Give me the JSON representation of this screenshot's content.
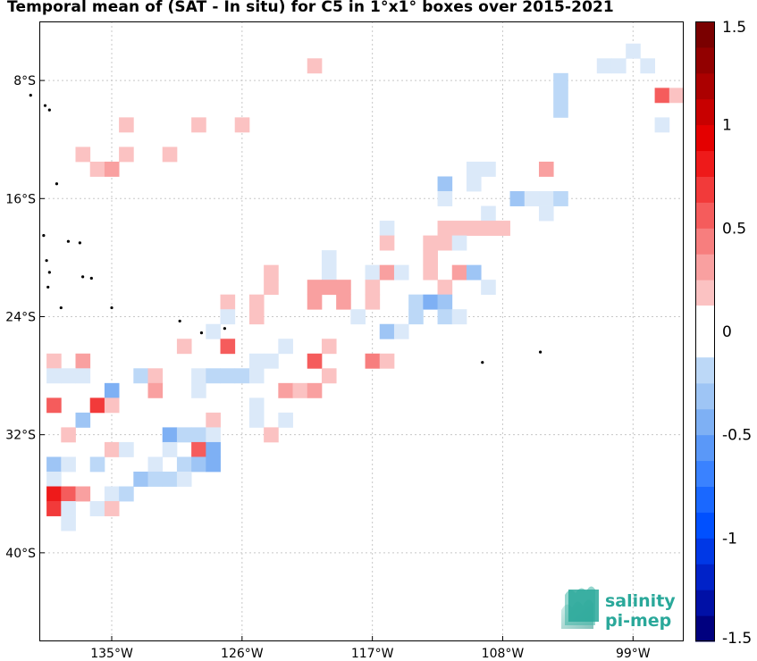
{
  "title": "Temporal mean of (SAT - In situ) for C5 in 1°x1° boxes over 2015-2021",
  "logo": {
    "line1": "salinity",
    "line2": "pi-mep",
    "color": "#2aa89a"
  },
  "chart_data": {
    "type": "heatmap",
    "title": "Temporal mean of (SAT - In situ) for C5 in 1°x1° boxes over 2015-2021",
    "x_ticks": [
      {
        "value": -135,
        "label": "135°W"
      },
      {
        "value": -126,
        "label": "126°W"
      },
      {
        "value": -117,
        "label": "117°W"
      },
      {
        "value": -108,
        "label": "108°W"
      },
      {
        "value": -99,
        "label": "99°W"
      }
    ],
    "y_ticks": [
      {
        "value": -8,
        "label": "8°S"
      },
      {
        "value": -16,
        "label": "16°S"
      },
      {
        "value": -24,
        "label": "24°S"
      },
      {
        "value": -32,
        "label": "32°S"
      },
      {
        "value": -40,
        "label": "40°S"
      }
    ],
    "xlim": [
      -140,
      -95.5
    ],
    "ylim": [
      -46,
      -4
    ],
    "grid": true,
    "colorbar": {
      "range": [
        -1.5,
        1.5
      ],
      "ticks": [
        {
          "value": 1.5,
          "label": "1.5"
        },
        {
          "value": 1,
          "label": "1"
        },
        {
          "value": 0.5,
          "label": "0.5"
        },
        {
          "value": 0,
          "label": "0"
        },
        {
          "value": -0.5,
          "label": "-0.5"
        },
        {
          "value": -1,
          "label": "-1"
        },
        {
          "value": -1.5,
          "label": "-1.5"
        }
      ]
    },
    "cells": [
      {
        "lon": -99,
        "lat": -6,
        "value": -0.1
      },
      {
        "lon": -101,
        "lat": -7,
        "value": -0.1
      },
      {
        "lon": -100,
        "lat": -7,
        "value": -0.1
      },
      {
        "lon": -98,
        "lat": -7,
        "value": -0.1
      },
      {
        "lon": -104,
        "lat": -8,
        "value": -0.2
      },
      {
        "lon": -97,
        "lat": -9,
        "value": 0.6
      },
      {
        "lon": -96,
        "lat": -9,
        "value": 0.2
      },
      {
        "lon": -104,
        "lat": -9,
        "value": -0.2
      },
      {
        "lon": -104,
        "lat": -10,
        "value": -0.2
      },
      {
        "lon": -97,
        "lat": -11,
        "value": -0.1
      },
      {
        "lon": -121,
        "lat": -7,
        "value": 0.2
      },
      {
        "lon": -134,
        "lat": -11,
        "value": 0.15
      },
      {
        "lon": -129,
        "lat": -11,
        "value": 0.15
      },
      {
        "lon": -126,
        "lat": -11,
        "value": 0.15
      },
      {
        "lon": -137,
        "lat": -13,
        "value": 0.2
      },
      {
        "lon": -134,
        "lat": -13,
        "value": 0.2
      },
      {
        "lon": -131,
        "lat": -13,
        "value": 0.15
      },
      {
        "lon": -136,
        "lat": -14,
        "value": 0.2
      },
      {
        "lon": -135,
        "lat": -14,
        "value": 0.35
      },
      {
        "lon": -110,
        "lat": -14,
        "value": -0.1
      },
      {
        "lon": -109,
        "lat": -14,
        "value": -0.1
      },
      {
        "lon": -105,
        "lat": -14,
        "value": 0.25
      },
      {
        "lon": -112,
        "lat": -15,
        "value": -0.35
      },
      {
        "lon": -110,
        "lat": -15,
        "value": -0.1
      },
      {
        "lon": -112,
        "lat": -16,
        "value": -0.1
      },
      {
        "lon": -107,
        "lat": -16,
        "value": -0.35
      },
      {
        "lon": -105,
        "lat": -16,
        "value": -0.1
      },
      {
        "lon": -104,
        "lat": -16,
        "value": -0.2
      },
      {
        "lon": -106,
        "lat": -16,
        "value": -0.1
      },
      {
        "lon": -109,
        "lat": -17,
        "value": -0.1
      },
      {
        "lon": -105,
        "lat": -17,
        "value": -0.1
      },
      {
        "lon": -116,
        "lat": -18,
        "value": -0.1
      },
      {
        "lon": -112,
        "lat": -18,
        "value": 0.15
      },
      {
        "lon": -111,
        "lat": -18,
        "value": 0.15
      },
      {
        "lon": -110,
        "lat": -18,
        "value": 0.15
      },
      {
        "lon": -109,
        "lat": -18,
        "value": 0.15
      },
      {
        "lon": -108,
        "lat": -18,
        "value": 0.15
      },
      {
        "lon": -116,
        "lat": -19,
        "value": 0.2
      },
      {
        "lon": -113,
        "lat": -19,
        "value": 0.2
      },
      {
        "lon": -112,
        "lat": -19,
        "value": 0.15
      },
      {
        "lon": -111,
        "lat": -19,
        "value": -0.1
      },
      {
        "lon": -113,
        "lat": -20,
        "value": 0.2
      },
      {
        "lon": -120,
        "lat": -20,
        "value": -0.1
      },
      {
        "lon": -120,
        "lat": -21,
        "value": -0.1
      },
      {
        "lon": -117,
        "lat": -21,
        "value": -0.1
      },
      {
        "lon": -116,
        "lat": -21,
        "value": 0.3
      },
      {
        "lon": -115,
        "lat": -21,
        "value": -0.1
      },
      {
        "lon": -113,
        "lat": -21,
        "value": 0.2
      },
      {
        "lon": -111,
        "lat": -21,
        "value": 0.25
      },
      {
        "lon": -110,
        "lat": -21,
        "value": -0.35
      },
      {
        "lon": -124,
        "lat": -21,
        "value": 0.15
      },
      {
        "lon": -124,
        "lat": -22,
        "value": 0.15
      },
      {
        "lon": -121,
        "lat": -22,
        "value": 0.35
      },
      {
        "lon": -120,
        "lat": -22,
        "value": 0.35
      },
      {
        "lon": -119,
        "lat": -22,
        "value": 0.3
      },
      {
        "lon": -117,
        "lat": -22,
        "value": 0.2
      },
      {
        "lon": -112,
        "lat": -22,
        "value": 0.2
      },
      {
        "lon": -109,
        "lat": -22,
        "value": -0.1
      },
      {
        "lon": -127,
        "lat": -23,
        "value": 0.2
      },
      {
        "lon": -125,
        "lat": -23,
        "value": 0.2
      },
      {
        "lon": -121,
        "lat": -23,
        "value": 0.25
      },
      {
        "lon": -119,
        "lat": -23,
        "value": 0.3
      },
      {
        "lon": -117,
        "lat": -23,
        "value": 0.2
      },
      {
        "lon": -114,
        "lat": -23,
        "value": -0.2
      },
      {
        "lon": -113,
        "lat": -23,
        "value": -0.45
      },
      {
        "lon": -112,
        "lat": -23,
        "value": -0.35
      },
      {
        "lon": -127,
        "lat": -24,
        "value": -0.1
      },
      {
        "lon": -125,
        "lat": -24,
        "value": 0.2
      },
      {
        "lon": -118,
        "lat": -24,
        "value": -0.1
      },
      {
        "lon": -114,
        "lat": -24,
        "value": -0.2
      },
      {
        "lon": -112,
        "lat": -24,
        "value": -0.2
      },
      {
        "lon": -111,
        "lat": -24,
        "value": -0.1
      },
      {
        "lon": -128,
        "lat": -25,
        "value": -0.1
      },
      {
        "lon": -116,
        "lat": -25,
        "value": -0.35
      },
      {
        "lon": -115,
        "lat": -25,
        "value": -0.1
      },
      {
        "lon": -130,
        "lat": -26,
        "value": 0.2
      },
      {
        "lon": -127,
        "lat": -26,
        "value": 0.6
      },
      {
        "lon": -123,
        "lat": -26,
        "value": -0.1
      },
      {
        "lon": -120,
        "lat": -26,
        "value": 0.2
      },
      {
        "lon": -139,
        "lat": -27,
        "value": 0.15
      },
      {
        "lon": -137,
        "lat": -27,
        "value": 0.35
      },
      {
        "lon": -125,
        "lat": -27,
        "value": -0.1
      },
      {
        "lon": -124,
        "lat": -27,
        "value": -0.1
      },
      {
        "lon": -121,
        "lat": -27,
        "value": 0.6
      },
      {
        "lon": -117,
        "lat": -27,
        "value": 0.45
      },
      {
        "lon": -116,
        "lat": -27,
        "value": 0.2
      },
      {
        "lon": -139,
        "lat": -28,
        "value": -0.1
      },
      {
        "lon": -138,
        "lat": -28,
        "value": -0.1
      },
      {
        "lon": -137,
        "lat": -28,
        "value": -0.1
      },
      {
        "lon": -133,
        "lat": -28,
        "value": -0.2
      },
      {
        "lon": -132,
        "lat": -28,
        "value": 0.2
      },
      {
        "lon": -129,
        "lat": -28,
        "value": -0.1
      },
      {
        "lon": -128,
        "lat": -28,
        "value": -0.2
      },
      {
        "lon": -127,
        "lat": -28,
        "value": -0.2
      },
      {
        "lon": -126,
        "lat": -28,
        "value": -0.2
      },
      {
        "lon": -125,
        "lat": -28,
        "value": -0.1
      },
      {
        "lon": -120,
        "lat": -28,
        "value": 0.2
      },
      {
        "lon": -135,
        "lat": -29,
        "value": -0.4
      },
      {
        "lon": -132,
        "lat": -29,
        "value": 0.3
      },
      {
        "lon": -129,
        "lat": -29,
        "value": -0.1
      },
      {
        "lon": -123,
        "lat": -29,
        "value": 0.3
      },
      {
        "lon": -122,
        "lat": -29,
        "value": 0.2
      },
      {
        "lon": -121,
        "lat": -29,
        "value": 0.3
      },
      {
        "lon": -139,
        "lat": -30,
        "value": 0.6
      },
      {
        "lon": -136,
        "lat": -30,
        "value": 0.7
      },
      {
        "lon": -135,
        "lat": -30,
        "value": 0.2
      },
      {
        "lon": -125,
        "lat": -30,
        "value": -0.1
      },
      {
        "lon": -137,
        "lat": -31,
        "value": -0.3
      },
      {
        "lon": -128,
        "lat": -31,
        "value": 0.2
      },
      {
        "lon": -125,
        "lat": -31,
        "value": -0.1
      },
      {
        "lon": -123,
        "lat": -31,
        "value": -0.1
      },
      {
        "lon": -138,
        "lat": -32,
        "value": 0.15
      },
      {
        "lon": -131,
        "lat": -32,
        "value": -0.5
      },
      {
        "lon": -130,
        "lat": -32,
        "value": -0.2
      },
      {
        "lon": -129,
        "lat": -32,
        "value": -0.2
      },
      {
        "lon": -128,
        "lat": -32,
        "value": -0.1
      },
      {
        "lon": -124,
        "lat": -32,
        "value": 0.2
      },
      {
        "lon": -135,
        "lat": -33,
        "value": 0.2
      },
      {
        "lon": -134,
        "lat": -33,
        "value": -0.1
      },
      {
        "lon": -131,
        "lat": -33,
        "value": -0.1
      },
      {
        "lon": -129,
        "lat": -33,
        "value": 0.5
      },
      {
        "lon": -128,
        "lat": -33,
        "value": -0.45
      },
      {
        "lon": -139,
        "lat": -34,
        "value": -0.35
      },
      {
        "lon": -138,
        "lat": -34,
        "value": -0.1
      },
      {
        "lon": -136,
        "lat": -34,
        "value": -0.2
      },
      {
        "lon": -132,
        "lat": -34,
        "value": -0.1
      },
      {
        "lon": -130,
        "lat": -34,
        "value": -0.2
      },
      {
        "lon": -129,
        "lat": -34,
        "value": -0.35
      },
      {
        "lon": -128,
        "lat": -34,
        "value": -0.45
      },
      {
        "lon": -139,
        "lat": -35,
        "value": -0.1
      },
      {
        "lon": -133,
        "lat": -35,
        "value": -0.35
      },
      {
        "lon": -132,
        "lat": -35,
        "value": -0.25
      },
      {
        "lon": -131,
        "lat": -35,
        "value": -0.2
      },
      {
        "lon": -130,
        "lat": -35,
        "value": -0.1
      },
      {
        "lon": -139,
        "lat": -36,
        "value": 0.8
      },
      {
        "lon": -138,
        "lat": -36,
        "value": 0.5
      },
      {
        "lon": -137,
        "lat": -36,
        "value": 0.25
      },
      {
        "lon": -135,
        "lat": -36,
        "value": -0.1
      },
      {
        "lon": -134,
        "lat": -36,
        "value": -0.2
      },
      {
        "lon": -139,
        "lat": -37,
        "value": 0.65
      },
      {
        "lon": -138,
        "lat": -37,
        "value": -0.1
      },
      {
        "lon": -136,
        "lat": -37,
        "value": -0.1
      },
      {
        "lon": -135,
        "lat": -37,
        "value": 0.2
      },
      {
        "lon": -138,
        "lat": -38,
        "value": -0.1
      }
    ]
  }
}
